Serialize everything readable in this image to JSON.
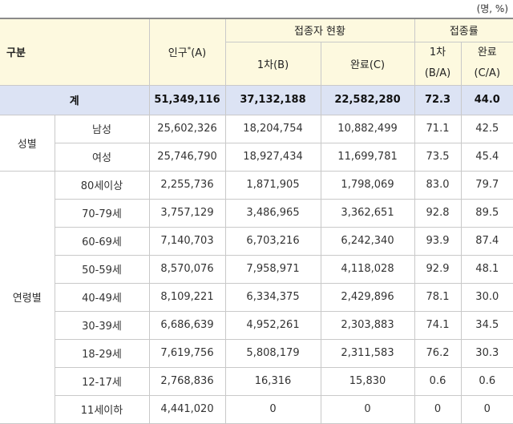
{
  "unit": "(명, %)",
  "header": {
    "group": "구분",
    "population": "인구",
    "population_mark": "*",
    "population_suffix": "(A)",
    "vaccinated": "접종자 현황",
    "rate": "접종률",
    "first": "1차(B)",
    "complete": "완료(C)",
    "rate_first": "1차",
    "rate_first_sub": "(B/A)",
    "rate_complete": "완료",
    "rate_complete_sub": "(C/A)"
  },
  "total": {
    "label": "계",
    "values": [
      "51,349,116",
      "37,132,188",
      "22,582,280",
      "72.3",
      "44.0"
    ]
  },
  "groups": [
    {
      "label": "성별",
      "rows": [
        {
          "label": "남성",
          "values": [
            "25,602,326",
            "18,204,754",
            "10,882,499",
            "71.1",
            "42.5"
          ]
        },
        {
          "label": "여성",
          "values": [
            "25,746,790",
            "18,927,434",
            "11,699,781",
            "73.5",
            "45.4"
          ]
        }
      ]
    },
    {
      "label": "연령별",
      "rows": [
        {
          "label": "80세이상",
          "values": [
            "2,255,736",
            "1,871,905",
            "1,798,069",
            "83.0",
            "79.7"
          ]
        },
        {
          "label": "70-79세",
          "values": [
            "3,757,129",
            "3,486,965",
            "3,362,651",
            "92.8",
            "89.5"
          ]
        },
        {
          "label": "60-69세",
          "values": [
            "7,140,703",
            "6,703,216",
            "6,242,340",
            "93.9",
            "87.4"
          ]
        },
        {
          "label": "50-59세",
          "values": [
            "8,570,076",
            "7,958,971",
            "4,118,028",
            "92.9",
            "48.1"
          ]
        },
        {
          "label": "40-49세",
          "values": [
            "8,109,221",
            "6,334,375",
            "2,429,896",
            "78.1",
            "30.0"
          ]
        },
        {
          "label": "30-39세",
          "values": [
            "6,686,639",
            "4,952,261",
            "2,303,883",
            "74.1",
            "34.5"
          ]
        },
        {
          "label": "18-29세",
          "values": [
            "7,619,756",
            "5,808,179",
            "2,311,583",
            "76.2",
            "30.3"
          ]
        },
        {
          "label": "12-17세",
          "values": [
            "2,768,836",
            "16,316",
            "15,830",
            "0.6",
            "0.6"
          ]
        },
        {
          "label": "11세이하",
          "values": [
            "4,441,020",
            "0",
            "0",
            "0",
            "0"
          ]
        }
      ]
    }
  ]
}
